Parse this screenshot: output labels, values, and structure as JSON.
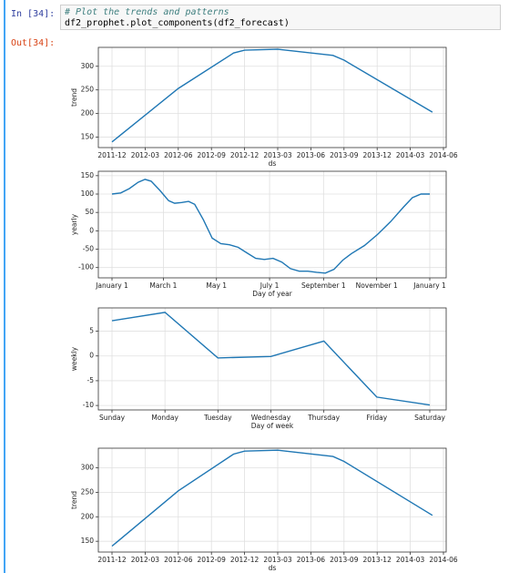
{
  "cell": {
    "in_prompt": "In [34]:",
    "code": [
      "# Plot the trends and patterns",
      "df2_prophet.plot_components(df2_forecast)"
    ],
    "out_prompt": "Out[34]:"
  },
  "chart_data": [
    {
      "type": "line",
      "xlabel": "ds",
      "ylabel": "trend",
      "color": "#1f77b4",
      "grid": true,
      "x": [
        "2011-12",
        "2012-06",
        "2012-11",
        "2012-12",
        "2013-03",
        "2013-08",
        "2013-09",
        "2014-05"
      ],
      "values": [
        140,
        253,
        328,
        334,
        336,
        323,
        313,
        203
      ],
      "xlim": [
        "2011-12",
        "2014-06"
      ],
      "xticks": [
        "2011-12",
        "2012-03",
        "2012-06",
        "2012-09",
        "2012-12",
        "2013-03",
        "2013-06",
        "2013-09",
        "2013-12",
        "2014-03",
        "2014-06"
      ],
      "ylim": [
        128,
        340
      ],
      "yticks": [
        150,
        200,
        250,
        300
      ]
    },
    {
      "type": "line",
      "xlabel": "Day of year",
      "ylabel": "yearly",
      "color": "#1f77b4",
      "grid": true,
      "x": [
        0,
        10,
        20,
        30,
        38,
        45,
        55,
        65,
        72,
        80,
        88,
        95,
        105,
        115,
        125,
        135,
        145,
        155,
        165,
        175,
        185,
        195,
        205,
        215,
        225,
        235,
        245,
        255,
        265,
        275,
        290,
        305,
        320,
        335,
        345,
        355,
        365
      ],
      "values": [
        100,
        103,
        115,
        132,
        140,
        135,
        110,
        82,
        75,
        77,
        80,
        72,
        30,
        -20,
        -35,
        -38,
        -45,
        -60,
        -75,
        -78,
        -75,
        -85,
        -103,
        -110,
        -110,
        -113,
        -115,
        -105,
        -80,
        -62,
        -40,
        -10,
        25,
        65,
        90,
        100,
        100
      ],
      "xlim": [
        0,
        365
      ],
      "xticks": [
        {
          "value": 0,
          "label": "January 1"
        },
        {
          "value": 59,
          "label": "March 1"
        },
        {
          "value": 120,
          "label": "May 1"
        },
        {
          "value": 181,
          "label": "July 1"
        },
        {
          "value": 243,
          "label": "September 1"
        },
        {
          "value": 304,
          "label": "November 1"
        },
        {
          "value": 365,
          "label": "January 1"
        }
      ],
      "ylim": [
        -128,
        162
      ],
      "yticks": [
        -100,
        -50,
        0,
        50,
        100,
        150
      ]
    },
    {
      "type": "line",
      "xlabel": "Day of week",
      "ylabel": "weekly",
      "color": "#1f77b4",
      "grid": true,
      "categories": [
        "Sunday",
        "Monday",
        "Tuesday",
        "Wednesday",
        "Thursday",
        "Friday",
        "Saturday"
      ],
      "values": [
        7.1,
        8.8,
        -0.4,
        -0.1,
        3.0,
        -8.3,
        -9.9
      ],
      "ylim": [
        -10.9,
        9.7
      ],
      "yticks": [
        -10,
        -5,
        0,
        5
      ]
    },
    {
      "type": "line",
      "xlabel": "ds",
      "ylabel": "trend",
      "color": "#1f77b4",
      "grid": true,
      "x": [
        "2011-12",
        "2012-06",
        "2012-11",
        "2012-12",
        "2013-03",
        "2013-08",
        "2013-09",
        "2014-05"
      ],
      "values": [
        140,
        253,
        328,
        334,
        336,
        323,
        313,
        203
      ],
      "xlim": [
        "2011-12",
        "2014-06"
      ],
      "xticks": [
        "2011-12",
        "2012-03",
        "2012-06",
        "2012-09",
        "2012-12",
        "2013-03",
        "2013-06",
        "2013-09",
        "2013-12",
        "2014-03",
        "2014-06"
      ],
      "ylim": [
        128,
        340
      ],
      "yticks": [
        150,
        200,
        250,
        300
      ]
    }
  ]
}
